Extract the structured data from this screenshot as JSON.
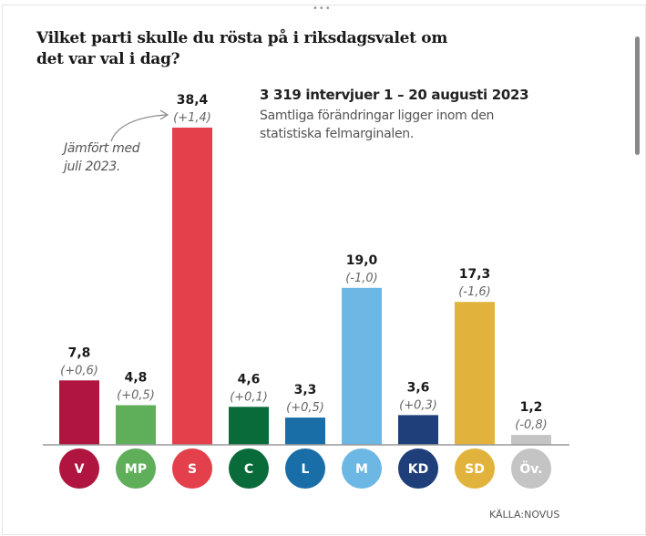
{
  "chart_data": {
    "type": "bar",
    "title": "Vilket parti skulle du rösta på i riksdagsvalet om det var val i dag?",
    "subtitle": "3 319 intervjuer 1 – 20 augusti 2023",
    "note": "Samtliga förändringar ligger inom den statistiska felmarginalen.",
    "annotation": "Jämfört med juli 2023.",
    "source": "KÄLLA:NOVUS",
    "categories": [
      "V",
      "MP",
      "S",
      "C",
      "L",
      "M",
      "KD",
      "SD",
      "Öv."
    ],
    "values": [
      7.8,
      4.8,
      38.4,
      4.6,
      3.3,
      19.0,
      3.6,
      17.3,
      1.2
    ],
    "value_labels": [
      "7,8",
      "4,8",
      "38,4",
      "4,6",
      "3,3",
      "19,0",
      "3,6",
      "17,3",
      "1,2"
    ],
    "change_labels": [
      "(+0,6)",
      "(+0,5)",
      "(+1,4)",
      "(+0,1)",
      "(+0,5)",
      "(-1,0)",
      "(+0,3)",
      "(-1,6)",
      "(-0,8)"
    ],
    "colors": [
      "#b0153f",
      "#5fae5a",
      "#e3404b",
      "#0a6b3a",
      "#1a6ea8",
      "#6cb7e4",
      "#1f3f7a",
      "#e2b33c",
      "#c4c4c4"
    ],
    "ylim": [
      0,
      40
    ],
    "grid": false
  },
  "ui": {
    "dots": "•••"
  }
}
